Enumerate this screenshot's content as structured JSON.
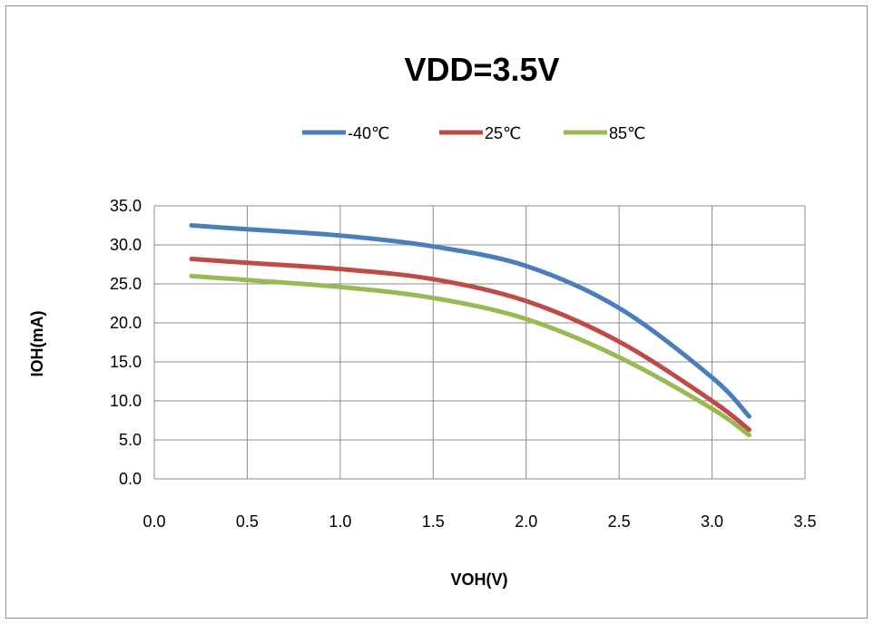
{
  "chart_data": {
    "type": "line",
    "title": "VDD=3.5V",
    "xlabel": "VOH(V)",
    "ylabel": "IOH(mA)",
    "xlim": [
      0.0,
      3.5
    ],
    "ylim": [
      0.0,
      35.0
    ],
    "xticks": [
      "0.0",
      "0.5",
      "1.0",
      "1.5",
      "2.0",
      "2.5",
      "3.0",
      "3.5"
    ],
    "yticks": [
      "0.0",
      "5.0",
      "10.0",
      "15.0",
      "20.0",
      "25.0",
      "30.0",
      "35.0"
    ],
    "grid": true,
    "legend_position": "top",
    "series": [
      {
        "name": "-40℃",
        "color": "#4a7ebb",
        "x": [
          0.2,
          0.5,
          1.0,
          1.5,
          2.0,
          2.5,
          3.0,
          3.2
        ],
        "y": [
          32.5,
          32.0,
          31.2,
          29.8,
          27.3,
          21.9,
          13.0,
          8.0
        ]
      },
      {
        "name": "25℃",
        "color": "#be4b48",
        "x": [
          0.2,
          0.5,
          1.0,
          1.5,
          2.0,
          2.5,
          3.0,
          3.2
        ],
        "y": [
          28.2,
          27.7,
          26.9,
          25.6,
          22.8,
          17.6,
          10.0,
          6.3
        ]
      },
      {
        "name": "85℃",
        "color": "#98b954",
        "x": [
          0.2,
          0.5,
          1.0,
          1.5,
          2.0,
          2.5,
          3.0,
          3.2
        ],
        "y": [
          26.0,
          25.5,
          24.6,
          23.2,
          20.5,
          15.6,
          9.0,
          5.6
        ]
      }
    ]
  }
}
